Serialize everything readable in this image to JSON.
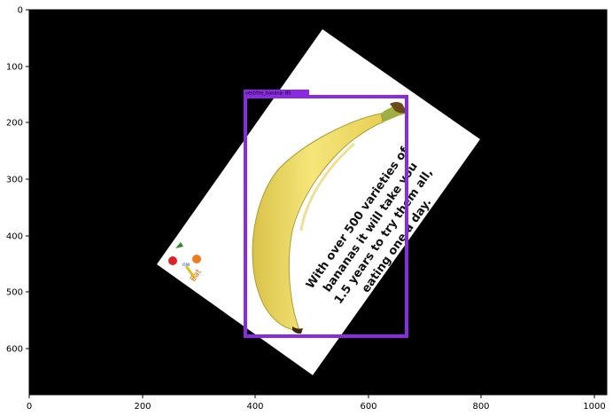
{
  "figure": {
    "x_ticks": [
      "0",
      "200",
      "400",
      "600",
      "800",
      "1000"
    ],
    "y_ticks": [
      "0",
      "100",
      "200",
      "300",
      "400",
      "500",
      "600"
    ],
    "detection": {
      "label": "vest/the_banana: 85",
      "color": "#8a2be2"
    },
    "image_caption": [
      "With over 500 varieties of",
      "bananas it will take you",
      "1.5 years to try them all,",
      "eating one a day."
    ]
  }
}
